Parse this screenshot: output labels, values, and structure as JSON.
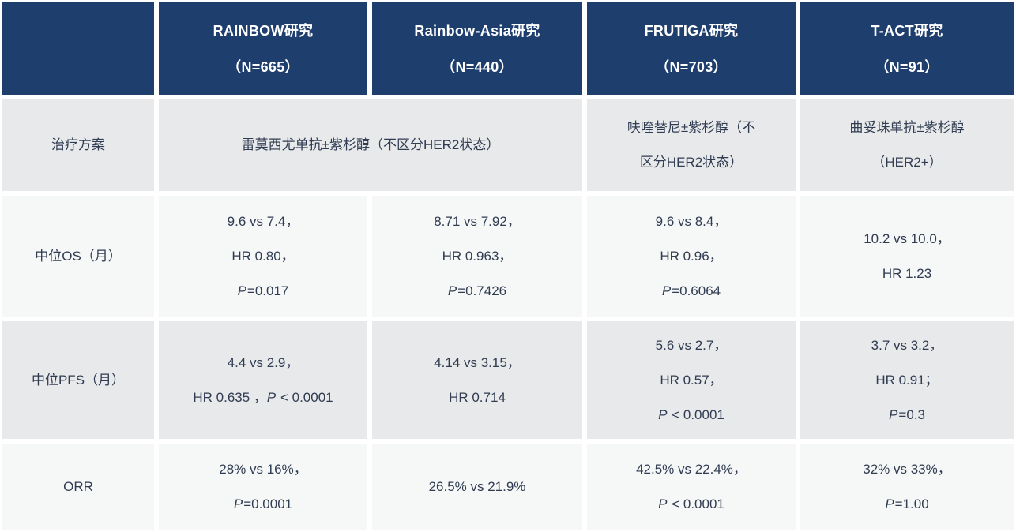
{
  "colors": {
    "header_bg": "#1e3e6d",
    "header_text": "#ffffff",
    "row_dark": "#e8e9ea",
    "row_light": "#f6f7f7",
    "body_text": "#303c52"
  },
  "chart_data": {
    "type": "table",
    "corner_label": "",
    "columns": [
      {
        "title": "RAINBOW研究",
        "n": "（N=665）"
      },
      {
        "title": "Rainbow-Asia研究",
        "n": "（N=440）"
      },
      {
        "title": "FRUTIGA研究",
        "n": "（N=703）"
      },
      {
        "title": "T-ACT研究",
        "n": "（N=91）"
      }
    ],
    "rows": [
      {
        "label": "治疗方案",
        "shade": "dark",
        "cells": [
          {
            "span": 2,
            "lines": [
              [
                "雷莫西尤单抗±紫杉醇（不区分HER2状态）"
              ]
            ]
          },
          {
            "span": 1,
            "lines": [
              [
                "呋喹替尼±紫杉醇（不"
              ],
              [
                "区分HER2状态）"
              ]
            ]
          },
          {
            "span": 1,
            "lines": [
              [
                "曲妥珠单抗±紫杉醇"
              ],
              [
                "（HER2+）"
              ]
            ]
          }
        ]
      },
      {
        "label": "中位OS（月）",
        "shade": "light",
        "cells": [
          {
            "span": 1,
            "lines": [
              [
                "9.6 vs 7.4，"
              ],
              [
                "HR 0.80，"
              ],
              [
                {
                  "t": "P",
                  "italic": true
                },
                {
                  "t": "=0.017"
                }
              ]
            ]
          },
          {
            "span": 1,
            "lines": [
              [
                "8.71 vs 7.92，"
              ],
              [
                "HR 0.963，"
              ],
              [
                {
                  "t": "P",
                  "italic": true
                },
                {
                  "t": "=0.7426"
                }
              ]
            ]
          },
          {
            "span": 1,
            "lines": [
              [
                "9.6 vs 8.4，"
              ],
              [
                "HR 0.96，"
              ],
              [
                {
                  "t": "P",
                  "italic": true
                },
                {
                  "t": "=0.6064"
                }
              ]
            ]
          },
          {
            "span": 1,
            "lines": [
              [
                "10.2 vs 10.0，"
              ],
              [
                "HR 1.23"
              ]
            ]
          }
        ]
      },
      {
        "label": "中位PFS（月）",
        "shade": "dark",
        "cells": [
          {
            "span": 1,
            "lines": [
              [
                "4.4 vs 2.9，"
              ],
              [
                "HR 0.635 ，",
                {
                  "t": "P",
                  "italic": true
                },
                {
                  "t": " < 0.0001"
                }
              ]
            ]
          },
          {
            "span": 1,
            "lines": [
              [
                "4.14 vs 3.15，"
              ],
              [
                "HR 0.714"
              ]
            ]
          },
          {
            "span": 1,
            "lines": [
              [
                "5.6 vs 2.7，"
              ],
              [
                "HR 0.57，"
              ],
              [
                {
                  "t": "P",
                  "italic": true
                },
                {
                  "t": " < 0.0001"
                }
              ]
            ]
          },
          {
            "span": 1,
            "lines": [
              [
                "3.7 vs 3.2，"
              ],
              [
                "HR 0.91；"
              ],
              [
                {
                  "t": "P",
                  "italic": true
                },
                {
                  "t": "=0.3"
                }
              ]
            ]
          }
        ]
      },
      {
        "label": "ORR",
        "shade": "light",
        "cells": [
          {
            "span": 1,
            "lines": [
              [
                "28% vs 16%，"
              ],
              [
                {
                  "t": "P",
                  "italic": true
                },
                {
                  "t": "=0.0001"
                }
              ]
            ]
          },
          {
            "span": 1,
            "lines": [
              [
                "26.5% vs 21.9%"
              ]
            ]
          },
          {
            "span": 1,
            "lines": [
              [
                "42.5% vs 22.4%，"
              ],
              [
                {
                  "t": "P",
                  "italic": true
                },
                {
                  "t": " < 0.0001"
                }
              ]
            ]
          },
          {
            "span": 1,
            "lines": [
              [
                "32% vs 33%，"
              ],
              [
                {
                  "t": "P",
                  "italic": true
                },
                {
                  "t": "=1.00"
                }
              ]
            ]
          }
        ]
      }
    ]
  }
}
